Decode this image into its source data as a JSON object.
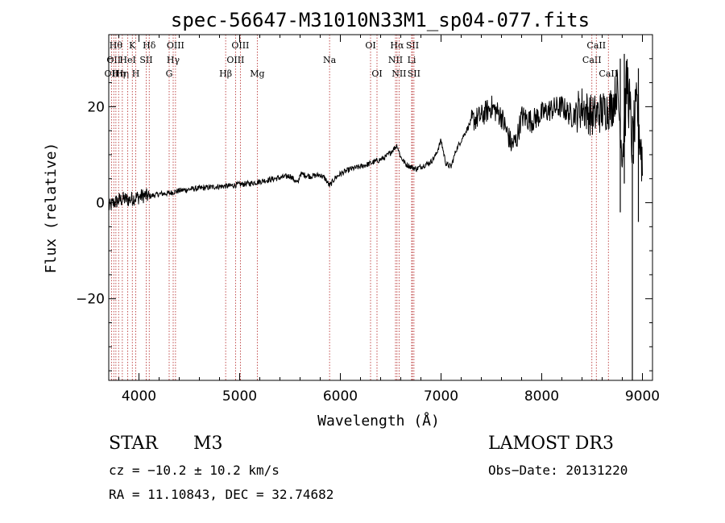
{
  "chart_data": {
    "type": "line",
    "title": "spec-56647-M31010N33M1_sp04-077.fits",
    "xlabel": "Wavelength (Å)",
    "ylabel": "Flux (relative)",
    "xlim": [
      3700,
      9100
    ],
    "ylim": [
      -37,
      35
    ],
    "xticks": [
      4000,
      5000,
      6000,
      7000,
      8000,
      9000
    ],
    "yticks": [
      -20,
      0,
      20
    ],
    "xtick_labels": [
      "4000",
      "5000",
      "6000",
      "7000",
      "8000",
      "9000"
    ],
    "ytick_labels": [
      "−20",
      "0",
      "20"
    ],
    "grid": false,
    "spectrum": {
      "x": [
        3700,
        3750,
        3800,
        3850,
        3900,
        3950,
        4000,
        4050,
        4100,
        4200,
        4300,
        4400,
        4500,
        4600,
        4700,
        4800,
        4900,
        5000,
        5100,
        5200,
        5300,
        5400,
        5500,
        5580,
        5600,
        5700,
        5800,
        5850,
        5893,
        5950,
        6000,
        6100,
        6200,
        6300,
        6400,
        6450,
        6500,
        6563,
        6600,
        6650,
        6700,
        6750,
        6800,
        6900,
        6950,
        7000,
        7050,
        7100,
        7150,
        7200,
        7300,
        7400,
        7500,
        7600,
        7650,
        7700,
        7750,
        7800,
        7900,
        8000,
        8100,
        8200,
        8300,
        8400,
        8500,
        8600,
        8700,
        8750,
        8800,
        8850,
        8900,
        8950,
        9000
      ],
      "y": [
        -1,
        0,
        0.5,
        0.8,
        0.6,
        1,
        1.2,
        1.5,
        1.3,
        1.8,
        2,
        2.5,
        2.8,
        3,
        3.2,
        3.4,
        3.5,
        3.8,
        4,
        4.4,
        4.8,
        5.2,
        5.6,
        4,
        6,
        5.5,
        5.8,
        5,
        3.5,
        5.2,
        6,
        7,
        7.5,
        8.2,
        9,
        9.5,
        10.5,
        12,
        9.5,
        8,
        7.5,
        7,
        7.5,
        8.5,
        10,
        13,
        8,
        7.5,
        11,
        13,
        17,
        18,
        20,
        18,
        15,
        12,
        13,
        18,
        17,
        18.5,
        19.5,
        20,
        18,
        20,
        18,
        19,
        20,
        24,
        10,
        26,
        12,
        20,
        8
      ]
    },
    "lines": [
      {
        "wavelength": 3727,
        "label": "OII",
        "row": 2
      },
      {
        "wavelength": 3750,
        "label": "OII",
        "row": 1
      },
      {
        "wavelength": 3771,
        "label": "Hθ",
        "row": 0
      },
      {
        "wavelength": 3798,
        "label": "Hη",
        "row": 2
      },
      {
        "wavelength": 3835,
        "label": "Hη",
        "row": 2
      },
      {
        "wavelength": 3889,
        "label": "HeI",
        "row": 1
      },
      {
        "wavelength": 3934,
        "label": "K",
        "row": 0
      },
      {
        "wavelength": 3968,
        "label": "H",
        "row": 2
      },
      {
        "wavelength": 4072,
        "label": "SII",
        "row": 1
      },
      {
        "wavelength": 4102,
        "label": "Hδ",
        "row": 0
      },
      {
        "wavelength": 4300,
        "label": "G",
        "row": 2
      },
      {
        "wavelength": 4340,
        "label": "Hγ",
        "row": 1
      },
      {
        "wavelength": 4363,
        "label": "OIII",
        "row": 0
      },
      {
        "wavelength": 4861,
        "label": "Hβ",
        "row": 2
      },
      {
        "wavelength": 4959,
        "label": "OIII",
        "row": 1
      },
      {
        "wavelength": 5007,
        "label": "OIII",
        "row": 0
      },
      {
        "wavelength": 5175,
        "label": "Mg",
        "row": 2
      },
      {
        "wavelength": 5893,
        "label": "Na",
        "row": 1
      },
      {
        "wavelength": 6300,
        "label": "OI",
        "row": 0
      },
      {
        "wavelength": 6364,
        "label": "OI",
        "row": 2
      },
      {
        "wavelength": 6548,
        "label": "NII",
        "row": 1
      },
      {
        "wavelength": 6563,
        "label": "Hα",
        "row": 0
      },
      {
        "wavelength": 6583,
        "label": "NII",
        "row": 2
      },
      {
        "wavelength": 6708,
        "label": "Li",
        "row": 1
      },
      {
        "wavelength": 6716,
        "label": "SII",
        "row": 0
      },
      {
        "wavelength": 6731,
        "label": "SII",
        "row": 2
      },
      {
        "wavelength": 8498,
        "label": "CaII",
        "row": 1
      },
      {
        "wavelength": 8542,
        "label": "CaII",
        "row": 0
      },
      {
        "wavelength": 8662,
        "label": "CaII",
        "row": 2
      }
    ]
  },
  "info": {
    "class": "STAR",
    "subclass": "M3",
    "survey": "LAMOST DR3",
    "cz": "cz = −10.2 ± 10.2 km/s",
    "obs_date": "Obs−Date: 20131220",
    "coords": "RA =  11.10843, DEC =  32.74682"
  },
  "colors": {
    "line_marker": "#b22222",
    "spectrum": "#000000",
    "axis": "#000000"
  }
}
